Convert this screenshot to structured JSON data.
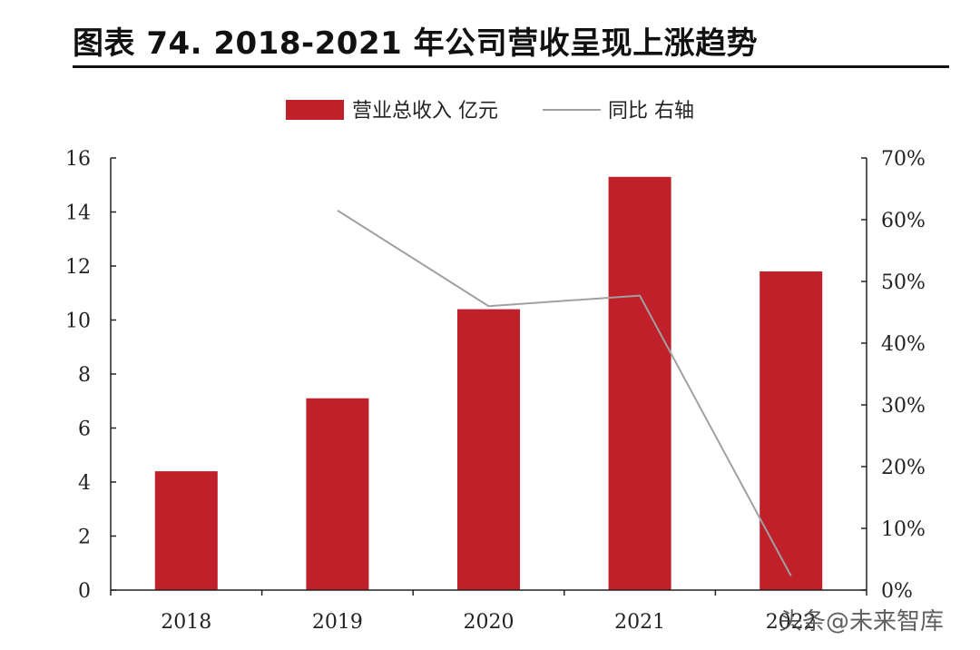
{
  "title": "图表 74. 2018-2021 年公司营收呈现上涨趋势",
  "watermark": "头条@未来智库",
  "colors": {
    "bar": "#c0202a",
    "line": "#a0a0a0",
    "axis": "#222222"
  },
  "chart_data": {
    "type": "bar",
    "categories": [
      "2018",
      "2019",
      "2020",
      "2021",
      "2022"
    ],
    "series": [
      {
        "name": "营业总收入 亿元",
        "type": "bar",
        "axis": "left",
        "values": [
          4.4,
          7.1,
          10.4,
          15.3,
          11.8
        ]
      },
      {
        "name": "同比 右轴",
        "type": "line",
        "axis": "right",
        "values": [
          null,
          61.5,
          46.0,
          47.7,
          2.3
        ]
      }
    ],
    "left_axis": {
      "min": 0,
      "max": 16,
      "ticks": [
        0,
        2,
        4,
        6,
        8,
        10,
        12,
        14,
        16
      ]
    },
    "right_axis": {
      "min": 0,
      "max": 70,
      "ticks": [
        "0%",
        "10%",
        "20%",
        "30%",
        "40%",
        "50%",
        "60%",
        "70%"
      ]
    },
    "legend_position": "top-center",
    "grid": false
  }
}
